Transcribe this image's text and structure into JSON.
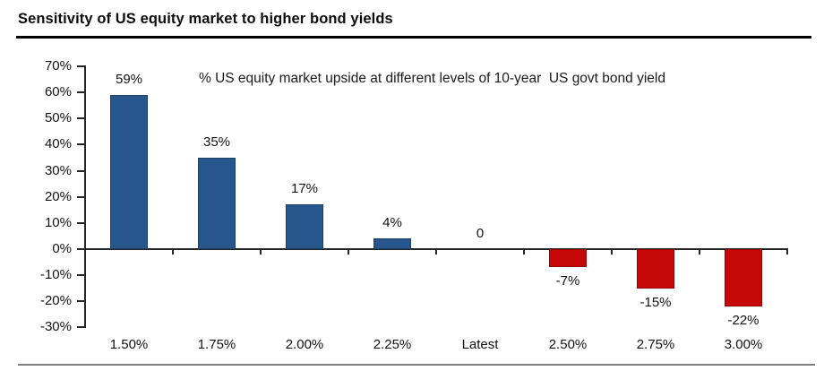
{
  "page": {
    "title": "Sensitivity of US equity market to higher bond yields"
  },
  "chart_data": {
    "type": "bar",
    "title": "Sensitivity of US equity market to higher bond yields",
    "subtitle": "% US equity market upside at different levels of 10-year  US govt bond yield",
    "categories": [
      "1.50%",
      "1.75%",
      "2.00%",
      "2.25%",
      "Latest",
      "2.50%",
      "2.75%",
      "3.00%"
    ],
    "values": [
      59,
      35,
      17,
      4,
      0,
      -7,
      -15,
      -22
    ],
    "value_labels": [
      "59%",
      "35%",
      "17%",
      "4%",
      "0",
      "-7%",
      "-15%",
      "-22%"
    ],
    "xlabel": "",
    "ylabel": "",
    "ylim": [
      -30,
      70
    ],
    "ytick_step": 10,
    "ytick_labels": [
      "70%",
      "60%",
      "50%",
      "40%",
      "30%",
      "20%",
      "10%",
      "0%",
      "-10%",
      "-20%",
      "-30%"
    ],
    "grid": false,
    "legend": null,
    "colors": {
      "positive_bar": "#26568B",
      "positive_bar_border": "#1A4067",
      "negative_bar": "#C60808",
      "negative_bar_border": "#8F0505",
      "axis": "#262626",
      "title_rule": "#000000",
      "bottom_rule": "#7F7F7F",
      "text": "#111111"
    }
  }
}
